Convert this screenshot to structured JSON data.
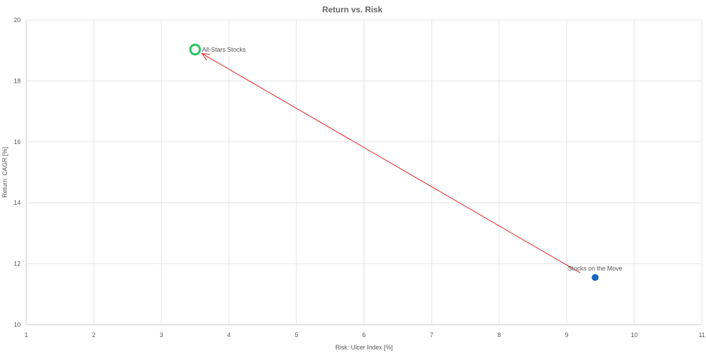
{
  "chart_data": {
    "type": "scatter",
    "title": "Return vs. Risk",
    "xlabel": "Risk: Ulcer Index [%]",
    "ylabel": "Return: CAGR [%]",
    "xlim": [
      1,
      11
    ],
    "ylim": [
      10,
      20
    ],
    "x_ticks": [
      1,
      2,
      3,
      4,
      5,
      6,
      7,
      8,
      9,
      10,
      11
    ],
    "y_ticks": [
      10,
      12,
      14,
      16,
      18,
      20
    ],
    "grid": true,
    "points": [
      {
        "label": "All-Stars Stocks",
        "x": 3.5,
        "y": 19.03,
        "marker": "hollow-circle",
        "color": "#22c55e"
      },
      {
        "label": "Stocks on the Move",
        "x": 9.42,
        "y": 11.55,
        "marker": "filled-circle",
        "color": "#1565c0"
      }
    ],
    "annotations": [
      {
        "type": "arrow",
        "from": [
          9.2,
          11.7
        ],
        "to": [
          3.6,
          18.9
        ],
        "color": "#e02020"
      }
    ]
  }
}
